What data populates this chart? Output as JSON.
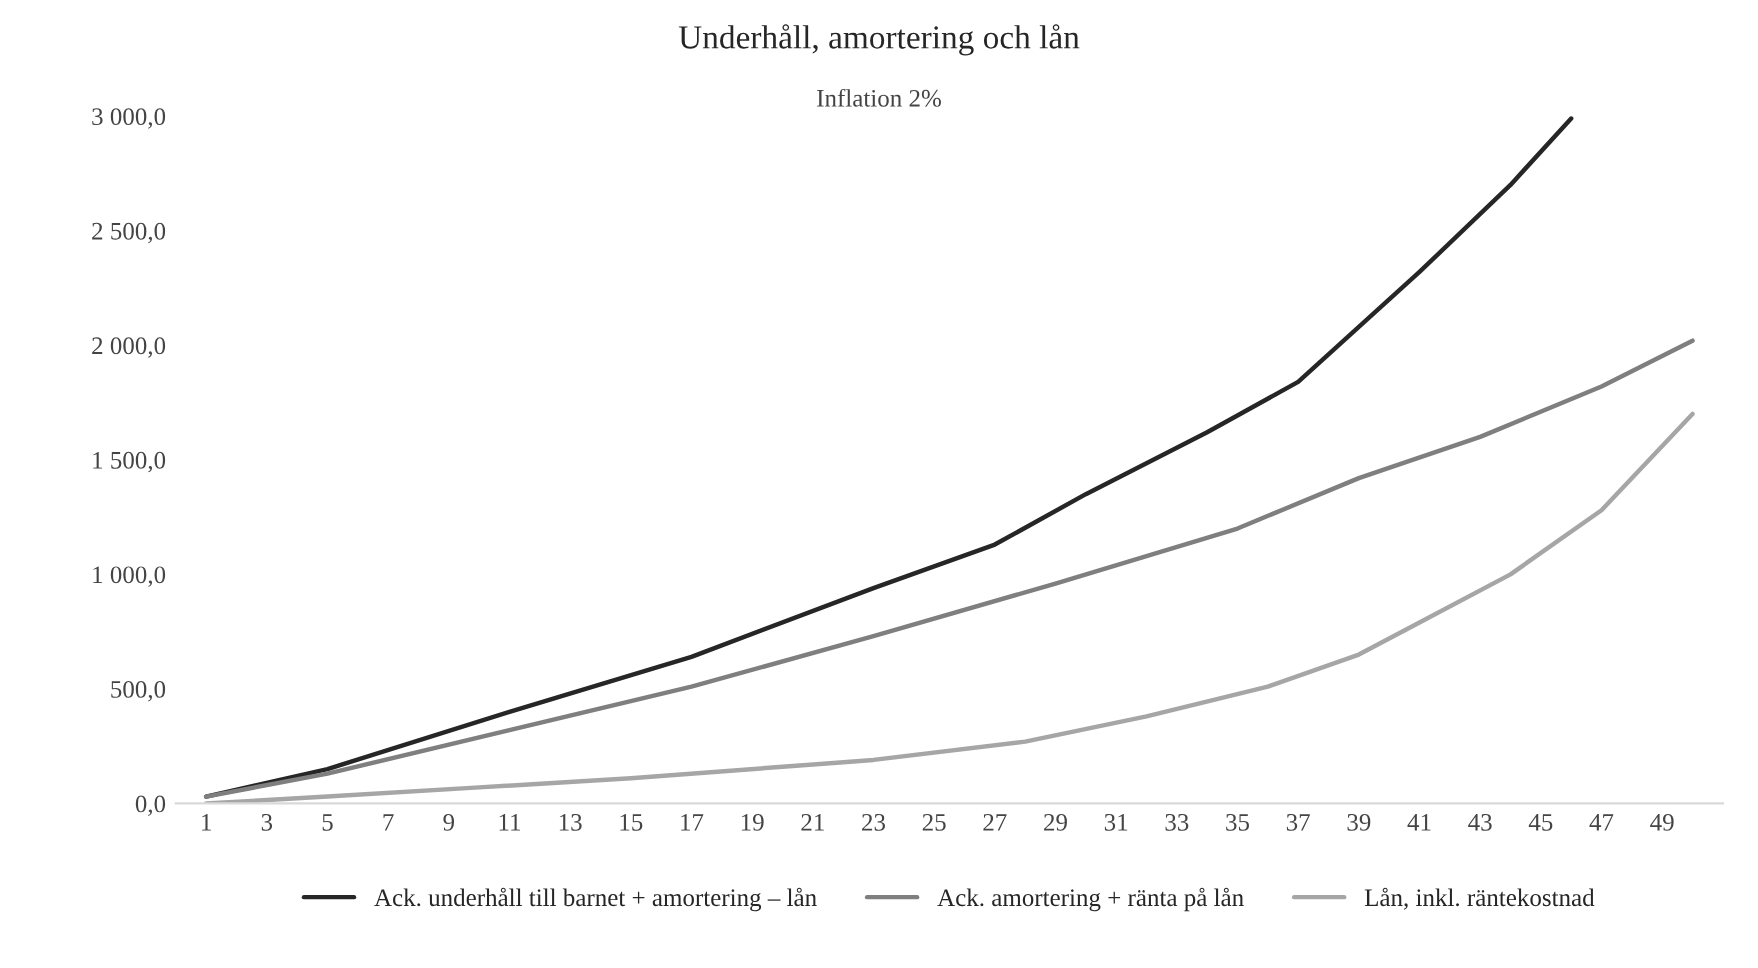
{
  "chart_data": {
    "type": "line",
    "title": "Underhåll, amortering och lån",
    "subtitle": "Inflation 2%",
    "series": [
      {
        "name": "Ack. underhåll till barnet + amortering – lån",
        "color": "#262626",
        "x": [
          1,
          5,
          11,
          17,
          23,
          27,
          30,
          34,
          37,
          41,
          44,
          46
        ],
        "values": [
          30,
          150,
          400,
          640,
          940,
          1130,
          1350,
          1620,
          1840,
          2320,
          2700,
          2990
        ]
      },
      {
        "name": "Ack. amortering + ränta på lån",
        "color": "#7f7f7f",
        "x": [
          1,
          5,
          11,
          17,
          23,
          29,
          35,
          39,
          43,
          47,
          50
        ],
        "values": [
          30,
          130,
          320,
          510,
          730,
          960,
          1200,
          1420,
          1600,
          1820,
          2020
        ]
      },
      {
        "name": "Lån, inkl. räntekostnad",
        "color": "#a6a6a6",
        "x": [
          1,
          5,
          10,
          15,
          20,
          23,
          28,
          32,
          36,
          39,
          41,
          44,
          47,
          50
        ],
        "values": [
          0,
          30,
          70,
          110,
          160,
          190,
          270,
          380,
          510,
          650,
          790,
          1000,
          1280,
          1700
        ]
      }
    ],
    "xlim": [
      0,
      51
    ],
    "xticks": [
      1,
      3,
      5,
      7,
      9,
      11,
      13,
      15,
      17,
      19,
      21,
      23,
      25,
      27,
      29,
      31,
      33,
      35,
      37,
      39,
      41,
      43,
      45,
      47,
      49
    ],
    "ylim": [
      0,
      3000
    ],
    "yticks": [
      {
        "value": 0,
        "label": "0,0"
      },
      {
        "value": 500,
        "label": "500,0"
      },
      {
        "value": 1000,
        "label": "1 000,0"
      },
      {
        "value": 1500,
        "label": "1 500,0"
      },
      {
        "value": 2000,
        "label": "2 000,0"
      },
      {
        "value": 2500,
        "label": "2 500,0"
      },
      {
        "value": 3000,
        "label": "3 000,0"
      }
    ],
    "grid": false,
    "legend": "bottom",
    "marker": "none",
    "line_style": "solid"
  }
}
